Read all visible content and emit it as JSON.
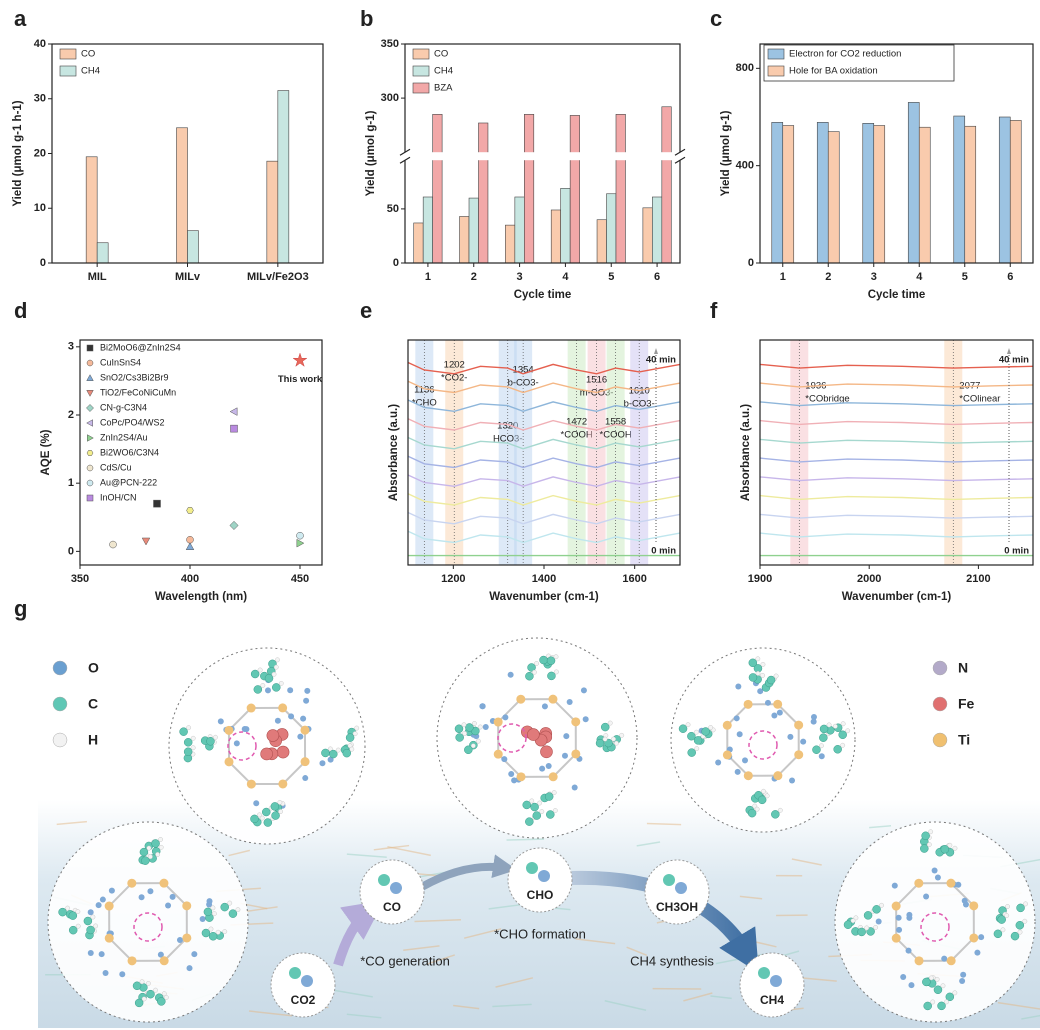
{
  "chart_data": [
    {
      "label": "a",
      "type": "bar",
      "categories": [
        "MIL",
        "MILv",
        "MILv/Fe2O3"
      ],
      "series": [
        {
          "name": "CO",
          "color": "#f9cbad",
          "values": [
            19.4,
            24.7,
            18.6
          ]
        },
        {
          "name": "CH4",
          "color": "#c7e6e1",
          "values": [
            3.7,
            5.9,
            31.5
          ]
        }
      ],
      "ylabel": "Yield (μmol g-1 h-1)",
      "ylim": [
        0,
        40
      ],
      "yticks": [
        0,
        10,
        20,
        30,
        40
      ],
      "legend": "upper left"
    },
    {
      "label": "b",
      "type": "bar",
      "categories": [
        "1",
        "2",
        "3",
        "4",
        "5",
        "6"
      ],
      "series": [
        {
          "name": "CO",
          "color": "#f9cbad",
          "values": [
            37,
            43,
            35,
            49,
            40,
            51
          ]
        },
        {
          "name": "CH4",
          "color": "#c7e6e1",
          "values": [
            61,
            60,
            61,
            69,
            64,
            61
          ]
        },
        {
          "name": "BZA",
          "color": "#f2a8a8",
          "values": [
            285,
            277,
            285,
            284,
            285,
            292
          ]
        }
      ],
      "xlabel": "Cycle time",
      "ylabel": "Yield (μmol g-1)",
      "ylim": [
        0,
        350
      ],
      "ybreak": [
        95,
        250
      ],
      "yticks": [
        0,
        50,
        300,
        350
      ],
      "legend": "upper left"
    },
    {
      "label": "c",
      "type": "bar",
      "categories": [
        "1",
        "2",
        "3",
        "4",
        "5",
        "6"
      ],
      "series": [
        {
          "name": "Electron for CO2 reduction",
          "color": "#9cc3e2",
          "values": [
            578,
            578,
            574,
            660,
            604,
            600
          ]
        },
        {
          "name": "Hole for BA oxidation",
          "color": "#f9cbad",
          "values": [
            565,
            540,
            565,
            558,
            562,
            586
          ]
        }
      ],
      "xlabel": "Cycle time",
      "ylabel": "Yield (μmol g-1)",
      "ylim": [
        0,
        900
      ],
      "yticks": [
        0,
        400,
        800
      ],
      "legend": "upper left",
      "legend_frame": true
    },
    {
      "label": "d",
      "type": "scatter",
      "xlabel": "Wavelength (nm)",
      "ylabel": "AQE (%)",
      "xlim": [
        350,
        460
      ],
      "xticks": [
        350,
        400,
        450
      ],
      "ylim": [
        -0.2,
        3.1
      ],
      "yticks": [
        0,
        1,
        2,
        3
      ],
      "legend": "upper left",
      "series": [
        {
          "name": "Bi2MoO6@ZnIn2S4",
          "color": "#333333",
          "marker": "square",
          "x": [
            385
          ],
          "values": [
            0.7
          ]
        },
        {
          "name": "CuInSnS4",
          "color": "#f5b99a",
          "marker": "circle",
          "x": [
            400
          ],
          "values": [
            0.17
          ]
        },
        {
          "name": "SnO2/Cs3Bi2Br9",
          "color": "#7fa9d6",
          "marker": "tri-up",
          "x": [
            400
          ],
          "values": [
            0.07
          ]
        },
        {
          "name": "TiO2/FeCoNiCuMn",
          "color": "#e88a7a",
          "marker": "tri-down",
          "x": [
            380
          ],
          "values": [
            0.15
          ]
        },
        {
          "name": "CN-g-C3N4",
          "color": "#9fd4c6",
          "marker": "diamond",
          "x": [
            420
          ],
          "values": [
            0.38
          ]
        },
        {
          "name": "CoPc/PO4/WS2",
          "color": "#c7b8e8",
          "marker": "tri-left",
          "x": [
            420
          ],
          "values": [
            2.05
          ]
        },
        {
          "name": "ZnIn2S4/Au",
          "color": "#8fd18f",
          "marker": "tri-right",
          "x": [
            450
          ],
          "values": [
            0.12
          ]
        },
        {
          "name": "Bi2WO6/C3N4",
          "color": "#f3ee8c",
          "marker": "hexagon",
          "x": [
            400
          ],
          "values": [
            0.6
          ]
        },
        {
          "name": "CdS/Cu",
          "color": "#efe6cf",
          "marker": "circle",
          "x": [
            365
          ],
          "values": [
            0.1
          ]
        },
        {
          "name": "Au@PCN-222",
          "color": "#cfeaf0",
          "marker": "circle",
          "x": [
            450
          ],
          "values": [
            0.23
          ]
        },
        {
          "name": "InOH/CN",
          "color": "#b98ae0",
          "marker": "square",
          "x": [
            420
          ],
          "values": [
            1.8
          ]
        }
      ],
      "highlight": {
        "name": "This work",
        "color": "#e8685a",
        "marker": "star",
        "x": 450,
        "value": 2.8
      }
    },
    {
      "label": "e",
      "type": "line",
      "xlabel": "Wavenumber (cm-1)",
      "ylabel": "Absorbance (a.u.)",
      "xlim": [
        1100,
        1700
      ],
      "xticks": [
        1200,
        1400,
        1600
      ],
      "ylim": [
        -0.5,
        11.5
      ],
      "yticks": [],
      "x": [
        1100,
        1136,
        1202,
        1260,
        1320,
        1354,
        1420,
        1472,
        1516,
        1558,
        1610,
        1700
      ],
      "series": [
        {
          "color": "#8fd18f",
          "values": [
            0,
            0,
            0,
            0,
            0,
            0,
            0,
            0,
            0,
            0,
            0,
            0
          ]
        },
        {
          "color": "#bfe6ee",
          "values": [
            1.3,
            0.9,
            0.7,
            1.1,
            1,
            0.7,
            1.2,
            0.9,
            0.7,
            1,
            0.8,
            1.2
          ]
        },
        {
          "color": "#c8d4f0",
          "values": [
            2.3,
            1.9,
            1.7,
            2.1,
            2,
            1.7,
            2.2,
            1.9,
            1.7,
            2,
            1.8,
            2.2
          ]
        },
        {
          "color": "#eeeb9e",
          "values": [
            3.3,
            2.9,
            2.7,
            3.1,
            3,
            2.7,
            3.2,
            2.9,
            2.7,
            3,
            2.8,
            3.2
          ]
        },
        {
          "color": "#c7b6ea",
          "values": [
            4.3,
            3.9,
            3.7,
            4.1,
            4,
            3.7,
            4.2,
            3.9,
            3.7,
            4,
            3.8,
            4.2
          ]
        },
        {
          "color": "#a5b3e5",
          "values": [
            5.3,
            4.9,
            4.7,
            5.1,
            5,
            4.7,
            5.2,
            4.9,
            4.7,
            5,
            4.8,
            5.2
          ]
        },
        {
          "color": "#a6d8cf",
          "values": [
            6.3,
            5.9,
            5.7,
            6.1,
            6,
            5.7,
            6.2,
            5.9,
            5.7,
            6,
            5.8,
            6.2
          ]
        },
        {
          "color": "#f0b0b6",
          "values": [
            7.3,
            6.9,
            6.7,
            7.1,
            7,
            6.7,
            7.2,
            6.9,
            6.7,
            7,
            6.8,
            7.2
          ]
        },
        {
          "color": "#8eb6da",
          "values": [
            8.3,
            7.9,
            7.7,
            8.1,
            8,
            7.7,
            8.2,
            7.9,
            7.7,
            8,
            7.8,
            8.2
          ]
        },
        {
          "color": "#f4b786",
          "values": [
            9.3,
            8.9,
            8.7,
            9.1,
            9,
            8.7,
            9.2,
            8.9,
            8.7,
            9,
            8.8,
            9.2
          ]
        },
        {
          "color": "#e5604f",
          "values": [
            10.3,
            9.9,
            9.7,
            10.1,
            10,
            9.7,
            10.2,
            9.9,
            9.7,
            10,
            9.8,
            10.2
          ]
        }
      ],
      "bands": [
        {
          "x": 1136,
          "label": "1136",
          "assign": "*CHO",
          "color": "#bcd3ef"
        },
        {
          "x": 1202,
          "label": "1202",
          "assign": "*CO2-",
          "color": "#f9d3b0"
        },
        {
          "x": 1320,
          "label": "1320",
          "assign": "HCO3-",
          "color": "#bcd3ef"
        },
        {
          "x": 1354,
          "label": "1354",
          "assign": "b-CO3-",
          "color": "#bcd3ef"
        },
        {
          "x": 1472,
          "label": "1472",
          "assign": "*COOH",
          "color": "#c9eac0"
        },
        {
          "x": 1516,
          "label": "1516",
          "assign": "m-CO3-",
          "color": "#f5c2c7"
        },
        {
          "x": 1558,
          "label": "1558",
          "assign": "*COOH",
          "color": "#c9eac0"
        },
        {
          "x": 1610,
          "label": "1610",
          "assign": "b-CO3-",
          "color": "#c9c4ef"
        }
      ],
      "annotations": {
        "start": "0 min",
        "end": "40 min"
      }
    },
    {
      "label": "f",
      "type": "line",
      "xlabel": "Wavenumber (cm-1)",
      "ylabel": "Absorbance (a.u.)",
      "xlim": [
        1900,
        2150
      ],
      "xticks": [
        1900,
        2000,
        2100
      ],
      "ylim": [
        -0.5,
        11.5
      ],
      "yticks": [],
      "x": [
        1900,
        1936,
        1980,
        2030,
        2077,
        2110,
        2150
      ],
      "series": [
        {
          "color": "#8fd18f",
          "values": [
            0,
            0,
            0,
            0,
            0,
            0,
            0
          ]
        },
        {
          "color": "#bfe6ee",
          "values": [
            1.2,
            1,
            1.15,
            1.1,
            1,
            1.05,
            1.1
          ]
        },
        {
          "color": "#c8d4f0",
          "values": [
            2.2,
            2,
            2.15,
            2.1,
            2,
            2.05,
            2.1
          ]
        },
        {
          "color": "#eeeb9e",
          "values": [
            3.2,
            3,
            3.15,
            3.1,
            3,
            3.05,
            3.1
          ]
        },
        {
          "color": "#c7b6ea",
          "values": [
            4.2,
            4,
            4.15,
            4.1,
            4,
            4.05,
            4.1
          ]
        },
        {
          "color": "#a5b3e5",
          "values": [
            5.2,
            5,
            5.15,
            5.1,
            5,
            5.05,
            5.1
          ]
        },
        {
          "color": "#a6d8cf",
          "values": [
            6.2,
            6,
            6.15,
            6.1,
            6,
            6.05,
            6.1
          ]
        },
        {
          "color": "#f0b0b6",
          "values": [
            7.2,
            7,
            7.15,
            7.1,
            7,
            7.05,
            7.1
          ]
        },
        {
          "color": "#8eb6da",
          "values": [
            8.2,
            8,
            8.15,
            8.1,
            8,
            8.05,
            8.1
          ]
        },
        {
          "color": "#f4b786",
          "values": [
            9.2,
            9,
            9.15,
            9.1,
            9,
            9.05,
            9.1
          ]
        },
        {
          "color": "#e5604f",
          "values": [
            10.2,
            10,
            10.15,
            10.1,
            10,
            10.05,
            10.1
          ]
        }
      ],
      "bands": [
        {
          "x": 1936,
          "label": "1936",
          "assign": "*CObridge",
          "color": "#f5c2c7"
        },
        {
          "x": 2077,
          "label": "2077",
          "assign": "*COlinear",
          "color": "#f9d3b0"
        }
      ],
      "annotations": {
        "start": "0 min",
        "end": "40 min"
      }
    }
  ],
  "diagram": {
    "label": "g",
    "legend_left": [
      "O",
      "C",
      "H"
    ],
    "legend_right": [
      "N",
      "Fe",
      "Ti"
    ],
    "species": [
      "CO2",
      "CO",
      "CHO",
      "CH3OH",
      "CH4"
    ],
    "steps": [
      "*CO generation",
      "*CHO formation",
      "CH4 synthesis"
    ]
  }
}
